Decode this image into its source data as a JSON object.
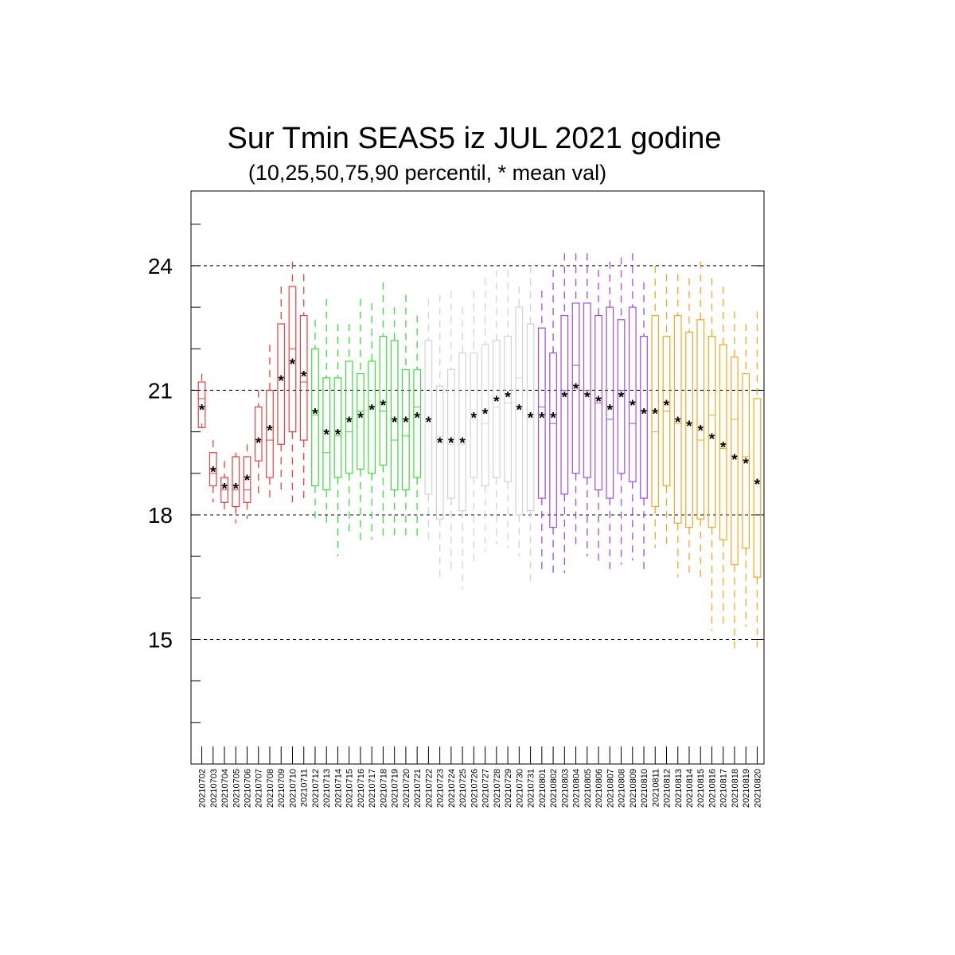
{
  "chart_data": {
    "type": "box",
    "title": "Sur Tmin SEAS5 iz JUL 2021 godine",
    "subtitle": "(10,25,50,75,90 percentil, * mean val)",
    "xlabel": "",
    "ylabel": "",
    "ylim": [
      12.0,
      25.8
    ],
    "yticks": [
      15,
      18,
      21,
      24
    ],
    "grid": "dashed horizontal at major ticks",
    "legend": "none",
    "categories": [
      "20210702",
      "20210703",
      "20210704",
      "20210705",
      "20210706",
      "20210707",
      "20210708",
      "20210709",
      "20210710",
      "20210711",
      "20210712",
      "20210713",
      "20210714",
      "20210715",
      "20210716",
      "20210717",
      "20210718",
      "20210719",
      "20210720",
      "20210721",
      "20210722",
      "20210723",
      "20210724",
      "20210725",
      "20210726",
      "20210727",
      "20210728",
      "20210729",
      "20210730",
      "20210731",
      "20210801",
      "20210802",
      "20210803",
      "20210804",
      "20210805",
      "20210806",
      "20210807",
      "20210808",
      "20210809",
      "20210810",
      "20210811",
      "20210812",
      "20210813",
      "20210814",
      "20210815",
      "20210816",
      "20210817",
      "20210818",
      "20210819",
      "20210820"
    ],
    "colors": [
      "#e8413c",
      "#e8413c",
      "#e8413c",
      "#e8413c",
      "#e8413c",
      "#e8413c",
      "#e8413c",
      "#e8413c",
      "#e8413c",
      "#e8413c",
      "#3ddc3d",
      "#3ddc3d",
      "#3ddc3d",
      "#3ddc3d",
      "#3ddc3d",
      "#3ddc3d",
      "#3ddc3d",
      "#3ddc3d",
      "#3ddc3d",
      "#3ddc3d",
      "#d3d3d3",
      "#d3d3d3",
      "#d3d3d3",
      "#d3d3d3",
      "#d3d3d3",
      "#d3d3d3",
      "#d3d3d3",
      "#d3d3d3",
      "#d3d3d3",
      "#d3d3d3",
      "#a24be0",
      "#a24be0",
      "#a24be0",
      "#a24be0",
      "#a24be0",
      "#a24be0",
      "#a24be0",
      "#a24be0",
      "#a24be0",
      "#a24be0",
      "#f5a623",
      "#f5a623",
      "#f5a623",
      "#f5a623",
      "#f5a623",
      "#f5a623",
      "#f5a623",
      "#f5a623",
      "#f5a623",
      "#f5a623"
    ],
    "mean_color": "#0a0a6e",
    "p10": [
      20.2,
      18.3,
      18.1,
      17.8,
      17.9,
      18.5,
      18.4,
      18.5,
      18.3,
      18.3,
      17.9,
      17.8,
      17.0,
      17.5,
      17.3,
      17.4,
      17.5,
      17.4,
      17.5,
      17.4,
      17.3,
      16.4,
      16.6,
      16.2,
      16.8,
      17.1,
      17.3,
      17.2,
      17.0,
      16.3,
      16.6,
      16.6,
      16.6,
      17.2,
      17.0,
      16.8,
      16.6,
      16.8,
      16.9,
      16.6,
      17.2,
      17.2,
      16.5,
      16.6,
      16.4,
      15.2,
      15.3,
      14.7,
      15.3,
      14.8
    ],
    "p25": [
      20.1,
      18.7,
      18.3,
      18.2,
      18.3,
      19.3,
      18.9,
      19.7,
      20.0,
      19.8,
      18.7,
      18.6,
      18.9,
      19.0,
      19.1,
      19.0,
      19.2,
      18.6,
      18.6,
      18.9,
      18.5,
      17.9,
      18.4,
      18.1,
      18.9,
      18.7,
      18.9,
      18.8,
      18.0,
      18.1,
      18.4,
      17.7,
      18.5,
      19.0,
      18.9,
      18.6,
      18.4,
      19.0,
      18.8,
      18.4,
      18.2,
      18.7,
      17.8,
      17.7,
      17.9,
      17.7,
      17.4,
      16.8,
      17.2,
      16.5
    ],
    "p50": [
      20.8,
      19.0,
      18.6,
      18.6,
      18.6,
      19.8,
      19.8,
      21.3,
      22.0,
      21.2,
      20.4,
      19.5,
      19.9,
      20.0,
      20.5,
      20.6,
      20.5,
      19.8,
      19.9,
      20.6,
      20.3,
      19.9,
      19.7,
      19.7,
      20.3,
      20.2,
      20.6,
      20.7,
      21.3,
      20.4,
      20.6,
      20.2,
      21.0,
      21.6,
      21.0,
      20.7,
      20.3,
      21.0,
      20.2,
      20.5,
      20.0,
      20.5,
      20.2,
      20.2,
      19.8,
      20.4,
      19.6,
      20.3,
      19.4,
      18.8
    ],
    "p75": [
      21.2,
      19.5,
      18.9,
      19.4,
      19.4,
      20.6,
      21.0,
      22.6,
      23.5,
      22.8,
      22.0,
      21.3,
      21.3,
      21.7,
      21.4,
      21.7,
      22.3,
      22.2,
      21.5,
      21.5,
      22.2,
      21.1,
      21.5,
      21.9,
      21.9,
      22.1,
      22.2,
      22.3,
      23.0,
      22.6,
      22.5,
      21.9,
      22.8,
      23.1,
      23.1,
      22.8,
      23.0,
      22.7,
      23.0,
      22.3,
      22.8,
      22.3,
      22.8,
      22.4,
      22.7,
      22.3,
      22.1,
      21.8,
      21.4,
      20.8
    ],
    "p90": [
      21.4,
      19.8,
      19.3,
      19.5,
      19.7,
      21.0,
      22.1,
      23.5,
      24.1,
      23.8,
      22.7,
      23.2,
      22.6,
      22.6,
      23.2,
      23.1,
      23.6,
      23.0,
      23.3,
      22.8,
      23.2,
      23.3,
      23.4,
      23.0,
      23.4,
      23.7,
      23.9,
      23.9,
      23.5,
      24.0,
      23.4,
      23.9,
      24.3,
      24.3,
      24.3,
      23.9,
      24.1,
      24.2,
      24.3,
      23.6,
      24.0,
      23.8,
      23.8,
      23.7,
      24.1,
      23.7,
      23.5,
      22.9,
      22.6,
      22.9
    ],
    "mean": [
      20.6,
      19.1,
      18.7,
      18.7,
      18.9,
      19.8,
      20.1,
      21.3,
      21.7,
      21.4,
      20.5,
      20.0,
      20.0,
      20.3,
      20.4,
      20.6,
      20.7,
      20.3,
      20.3,
      20.4,
      20.3,
      19.8,
      19.8,
      19.8,
      20.4,
      20.5,
      20.8,
      20.9,
      20.6,
      20.4,
      20.4,
      20.4,
      20.9,
      21.1,
      20.9,
      20.8,
      20.6,
      20.9,
      20.7,
      20.5,
      20.5,
      20.7,
      20.3,
      20.2,
      20.1,
      19.9,
      19.7,
      19.4,
      19.3,
      18.8
    ]
  }
}
